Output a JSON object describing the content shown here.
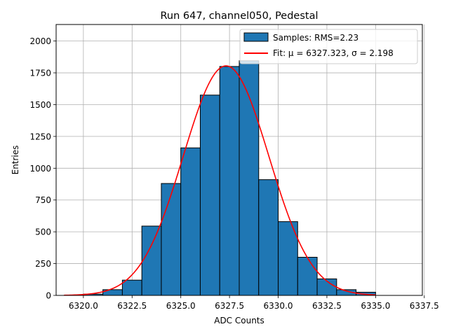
{
  "chart_data": {
    "type": "bar",
    "title": "Run 647, channel050, Pedestal",
    "xlabel": "ADC Counts",
    "ylabel": "Entries",
    "xlim": [
      6318.6,
      6337.4
    ],
    "ylim": [
      0,
      2130
    ],
    "xticks": [
      6320.0,
      6322.5,
      6325.0,
      6327.5,
      6330.0,
      6332.5,
      6335.0,
      6337.5
    ],
    "xtick_labels": [
      "6320.0",
      "6322.5",
      "6325.0",
      "6327.5",
      "6330.0",
      "6332.5",
      "6335.0",
      "6337.5"
    ],
    "yticks": [
      0,
      250,
      500,
      750,
      1000,
      1250,
      1500,
      1750,
      2000
    ],
    "ytick_labels": [
      "0",
      "250",
      "500",
      "750",
      "1000",
      "1250",
      "1500",
      "1750",
      "2000"
    ],
    "grid": true,
    "legend_position": "top-right",
    "histogram": {
      "name": "Samples: RMS=2.23",
      "color": "#1f77b4",
      "edge_color": "#000000",
      "bins": [
        {
          "x0": 6320,
          "x1": 6321,
          "count": 10
        },
        {
          "x0": 6321,
          "x1": 6322,
          "count": 45
        },
        {
          "x0": 6322,
          "x1": 6323,
          "count": 120
        },
        {
          "x0": 6323,
          "x1": 6324,
          "count": 545
        },
        {
          "x0": 6324,
          "x1": 6325,
          "count": 880
        },
        {
          "x0": 6325,
          "x1": 6326,
          "count": 1160
        },
        {
          "x0": 6326,
          "x1": 6327,
          "count": 1575
        },
        {
          "x0": 6327,
          "x1": 6328,
          "count": 1800
        },
        {
          "x0": 6328,
          "x1": 6329,
          "count": 1845
        },
        {
          "x0": 6329,
          "x1": 6330,
          "count": 910
        },
        {
          "x0": 6330,
          "x1": 6331,
          "count": 580
        },
        {
          "x0": 6331,
          "x1": 6332,
          "count": 300
        },
        {
          "x0": 6332,
          "x1": 6333,
          "count": 130
        },
        {
          "x0": 6333,
          "x1": 6334,
          "count": 45
        },
        {
          "x0": 6334,
          "x1": 6335,
          "count": 25
        }
      ]
    },
    "fit": {
      "name": "Fit: μ = 6327.323, σ = 2.198",
      "color": "#ff0000",
      "mu": 6327.323,
      "sigma": 2.198,
      "amplitude": 1805,
      "x_range": [
        6319.0,
        6335.0
      ]
    }
  }
}
